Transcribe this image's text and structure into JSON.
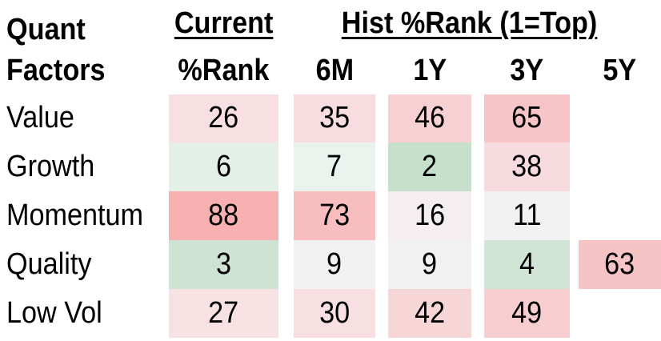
{
  "table": {
    "corner": {
      "line1": "Quant",
      "line2": "Factors"
    },
    "group_headers": {
      "current": "Current",
      "hist": "Hist %Rank (1=Top)"
    },
    "column_headers": [
      "%Rank",
      "6M",
      "1Y",
      "3Y",
      "5Y"
    ],
    "rows": [
      {
        "label": "Value",
        "cells": [
          {
            "value": "26",
            "bg": "#f8dfe2"
          },
          {
            "value": "35",
            "bg": "#f8dde0"
          },
          {
            "value": "46",
            "bg": "#f7d0d3"
          },
          {
            "value": "65",
            "bg": "#f7c5c7"
          },
          {
            "value": "",
            "bg": ""
          }
        ]
      },
      {
        "label": "Growth",
        "cells": [
          {
            "value": "6",
            "bg": "#e4efe7"
          },
          {
            "value": "7",
            "bg": "#eaf2ed"
          },
          {
            "value": "2",
            "bg": "#c7e0cc"
          },
          {
            "value": "38",
            "bg": "#f8dbde"
          },
          {
            "value": "",
            "bg": ""
          }
        ]
      },
      {
        "label": "Momentum",
        "cells": [
          {
            "value": "88",
            "bg": "#f8b1b1"
          },
          {
            "value": "73",
            "bg": "#f8bdbf"
          },
          {
            "value": "16",
            "bg": "#f4eef0"
          },
          {
            "value": "11",
            "bg": "#f1f1f2"
          },
          {
            "value": "",
            "bg": ""
          }
        ]
      },
      {
        "label": "Quality",
        "cells": [
          {
            "value": "3",
            "bg": "#cfe3d4"
          },
          {
            "value": "9",
            "bg": "#f2f1f2"
          },
          {
            "value": "9",
            "bg": "#f2f1f2"
          },
          {
            "value": "4",
            "bg": "#d1e5d6"
          },
          {
            "value": "63",
            "bg": "#f7c4c6"
          }
        ]
      },
      {
        "label": "Low Vol",
        "cells": [
          {
            "value": "27",
            "bg": "#f8e1e3"
          },
          {
            "value": "30",
            "bg": "#f8e0e2"
          },
          {
            "value": "42",
            "bg": "#f7d6d8"
          },
          {
            "value": "49",
            "bg": "#f7cdd0"
          },
          {
            "value": "",
            "bg": ""
          }
        ]
      }
    ],
    "text_color": "#000000",
    "background": "#ffffff"
  },
  "chart_data": {
    "type": "heatmap",
    "title": "Quant Factors %Rank (1=Top)",
    "row_labels": [
      "Value",
      "Growth",
      "Momentum",
      "Quality",
      "Low Vol"
    ],
    "columns": [
      "Current %Rank",
      "6M",
      "1Y",
      "3Y",
      "5Y"
    ],
    "values": [
      [
        26,
        35,
        46,
        65,
        null
      ],
      [
        6,
        7,
        2,
        38,
        null
      ],
      [
        88,
        73,
        16,
        11,
        null
      ],
      [
        3,
        9,
        9,
        4,
        63
      ],
      [
        27,
        30,
        42,
        49,
        null
      ]
    ],
    "legend_position": "none",
    "grid": false,
    "color_scale": {
      "low_green": "#c7e0cc",
      "mid_neutral": "#f2f1f2",
      "high_red": "#f8b1b1",
      "meaning": "low rank number = top percentile (green), high rank number = bottom percentile (red)"
    }
  }
}
